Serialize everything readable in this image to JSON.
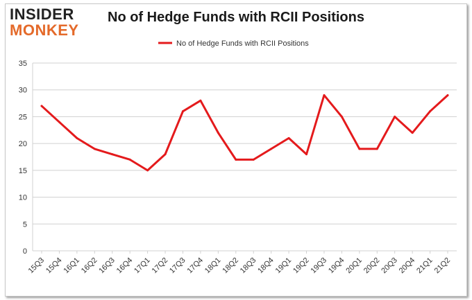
{
  "logo": {
    "line1": "INSIDER",
    "line2": "MONKEY"
  },
  "chart_data": {
    "type": "line",
    "title": "No of Hedge Funds with RCII Positions",
    "xlabel": "",
    "ylabel": "",
    "ylim": [
      0,
      35
    ],
    "yticks": [
      0,
      5,
      10,
      15,
      20,
      25,
      30,
      35
    ],
    "grid": true,
    "legend_position": "top-center",
    "categories": [
      "15Q3",
      "15Q4",
      "16Q1",
      "16Q2",
      "16Q3",
      "16Q4",
      "17Q1",
      "17Q2",
      "17Q3",
      "17Q4",
      "18Q1",
      "18Q2",
      "18Q3",
      "18Q4",
      "19Q1",
      "19Q2",
      "19Q3",
      "19Q4",
      "20Q1",
      "20Q2",
      "20Q3",
      "20Q4",
      "21Q1",
      "21Q2"
    ],
    "series": [
      {
        "name": "No of Hedge Funds with RCII Positions",
        "color": "#e41a1c",
        "values": [
          27,
          24,
          21,
          19,
          18,
          17,
          15,
          18,
          26,
          28,
          22,
          17,
          17,
          19,
          21,
          18,
          29,
          25,
          19,
          19,
          25,
          22,
          26,
          29
        ]
      }
    ]
  }
}
